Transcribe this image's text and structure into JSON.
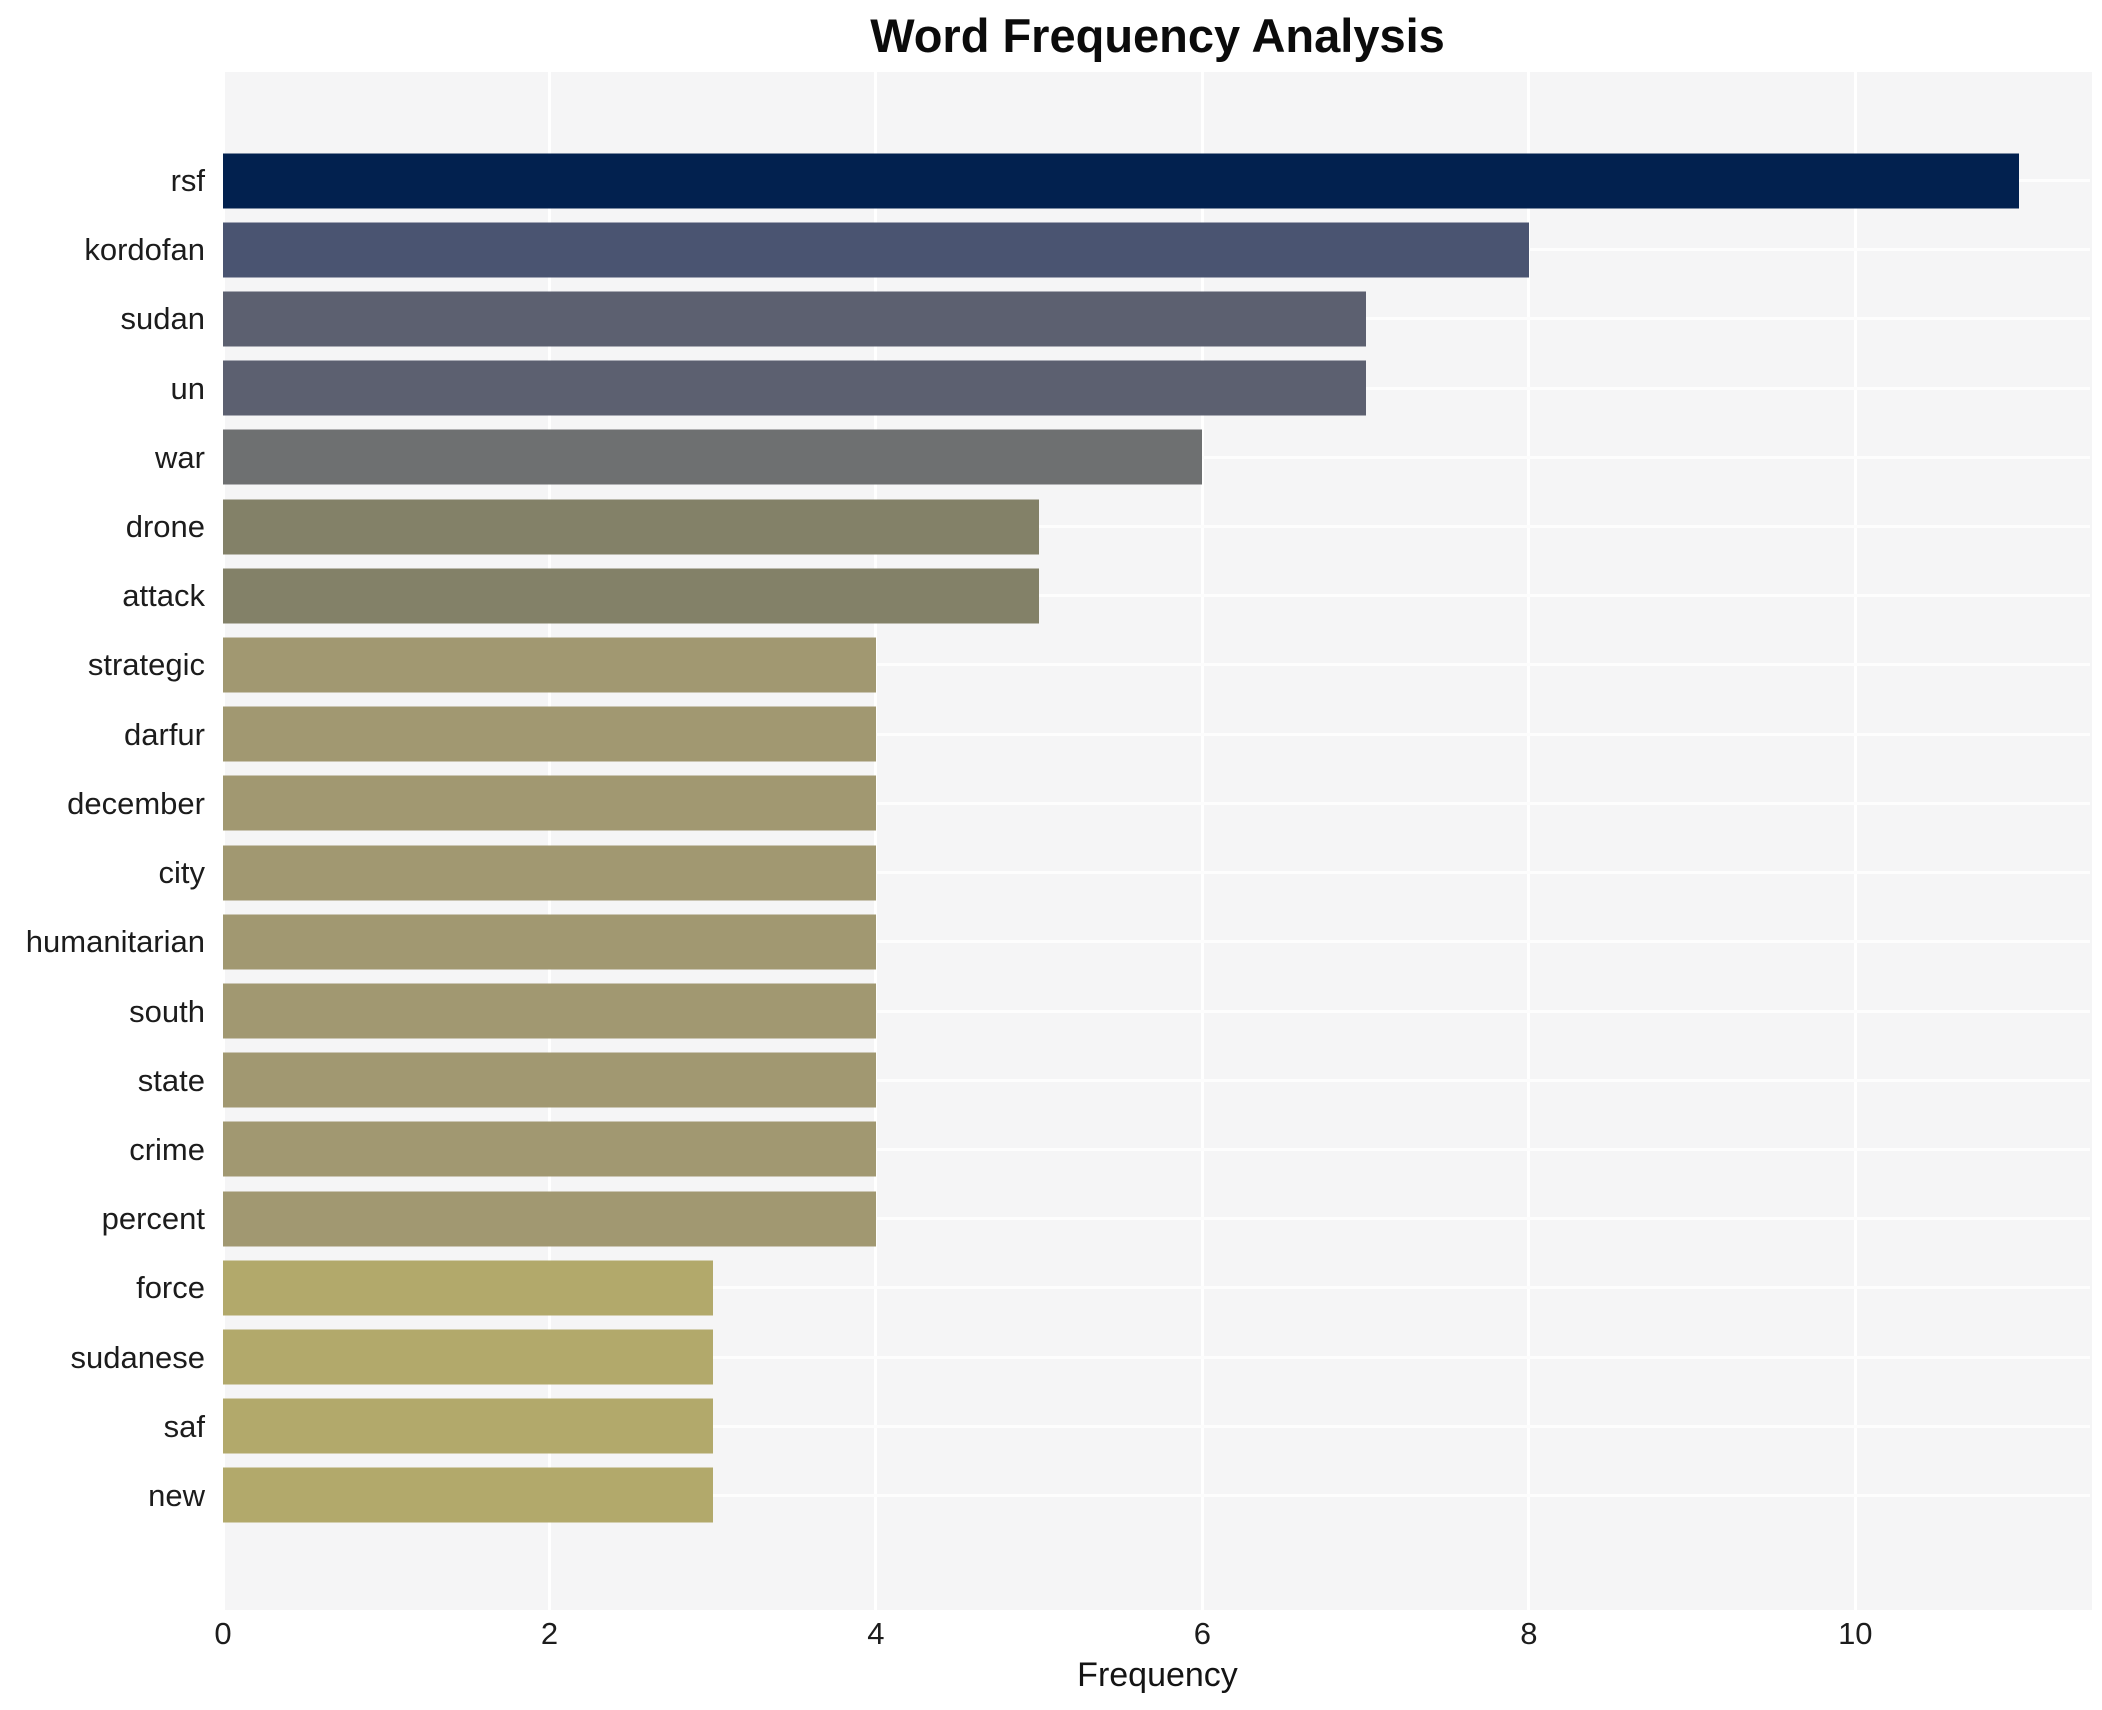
{
  "title": "Word Frequency Analysis",
  "xlabel": "Frequency",
  "colors": {
    "figure_background": "#ffffff",
    "plot_background": "#f5f5f6",
    "gridline": "#ffffff",
    "title_text": "#0b0b0b",
    "tick_text": "#1c1c1c"
  },
  "chart_data": {
    "type": "bar",
    "orientation": "horizontal",
    "title": "Word Frequency Analysis",
    "xlabel": "Frequency",
    "ylabel": "",
    "categories": [
      "rsf",
      "kordofan",
      "sudan",
      "un",
      "war",
      "drone",
      "attack",
      "strategic",
      "darfur",
      "december",
      "city",
      "humanitarian",
      "south",
      "state",
      "crime",
      "percent",
      "force",
      "sudanese",
      "saf",
      "new"
    ],
    "values": [
      11,
      8,
      7,
      7,
      6,
      5,
      5,
      4,
      4,
      4,
      4,
      4,
      4,
      4,
      4,
      4,
      3,
      3,
      3,
      3
    ],
    "bar_colors": [
      "#02214f",
      "#4a5471",
      "#5c6070",
      "#5c6070",
      "#6e7071",
      "#838168",
      "#838168",
      "#a19871",
      "#a19871",
      "#a19871",
      "#a19871",
      "#a19871",
      "#a19871",
      "#a19871",
      "#a19871",
      "#a19871",
      "#b2a96b",
      "#b2a96b",
      "#b2a96b",
      "#b2a96b"
    ],
    "xlim": [
      0,
      11.45
    ],
    "x_ticks": [
      0,
      2,
      4,
      6,
      8,
      10
    ],
    "grid": true,
    "legend": false,
    "colormap": "cividis"
  }
}
